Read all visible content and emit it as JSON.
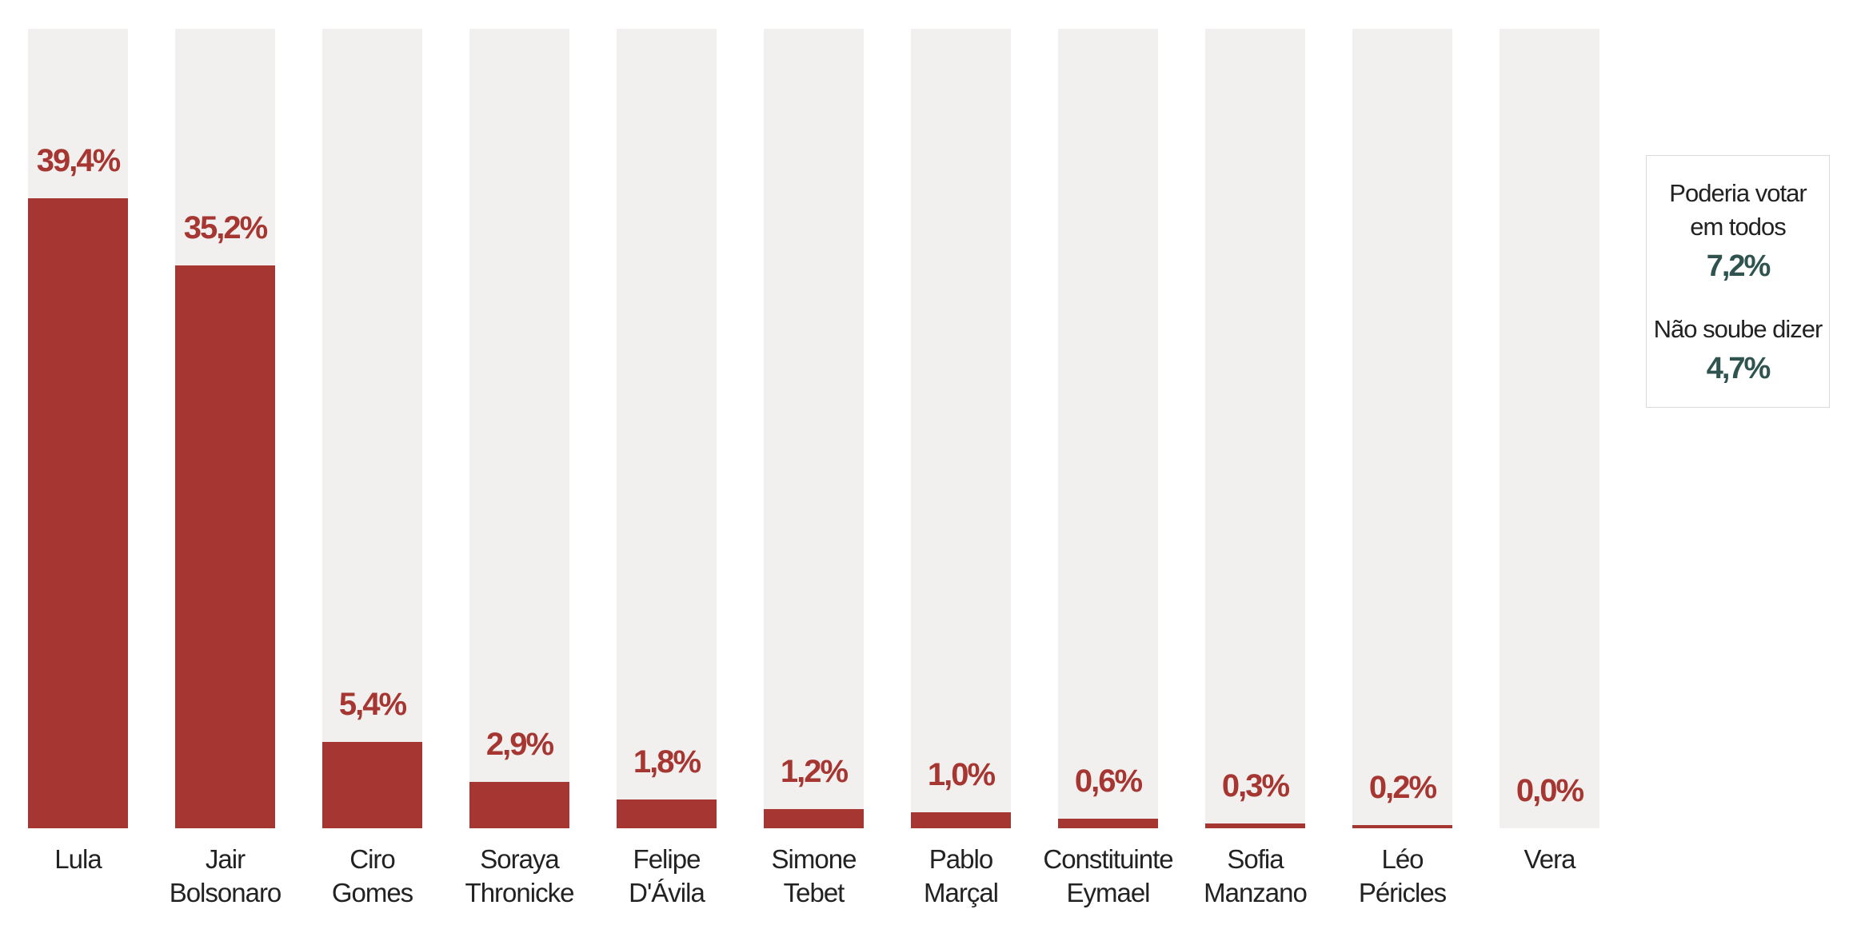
{
  "chart_data": {
    "type": "bar",
    "categories": [
      [
        "Lula"
      ],
      [
        "Jair",
        "Bolsonaro"
      ],
      [
        "Ciro",
        "Gomes"
      ],
      [
        "Soraya",
        "Thronicke"
      ],
      [
        "Felipe",
        "D'Ávila"
      ],
      [
        "Simone",
        "Tebet"
      ],
      [
        "Pablo",
        "Marçal"
      ],
      [
        "Constituinte",
        "Eymael"
      ],
      [
        "Sofia",
        "Manzano"
      ],
      [
        "Léo",
        "Péricles"
      ],
      [
        "Vera"
      ]
    ],
    "values": [
      39.4,
      35.2,
      5.4,
      2.9,
      1.8,
      1.2,
      1.0,
      0.6,
      0.3,
      0.2,
      0.0
    ],
    "value_labels": [
      "39,4%",
      "35,2%",
      "5,4%",
      "2,9%",
      "1,8%",
      "1,2%",
      "1,0%",
      "0,6%",
      "0,3%",
      "0,2%",
      "0,0%"
    ],
    "ylim": [
      0,
      50
    ],
    "grid": false,
    "bar_color": "#a63631",
    "track_color": "#f2f0ef"
  },
  "side_notes": [
    {
      "label_lines": [
        "Poderia votar",
        "em todos"
      ],
      "value": "7,2%"
    },
    {
      "label_lines": [
        "Não soube dizer"
      ],
      "value": "4,7%"
    }
  ],
  "side_value_color": "#2f5450"
}
